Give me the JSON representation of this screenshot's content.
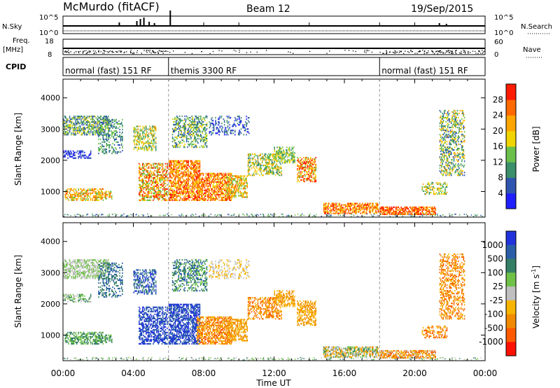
{
  "header": {
    "radar": "McMurdo (fitACF)",
    "beam": "Beam 12",
    "date": "19/Sep/2015"
  },
  "top_panels": {
    "nsky_label": "N.Sky",
    "nsky_ticks": [
      "10^5",
      "10^0"
    ],
    "nsearch_label": "N.Search",
    "nsearch_ticks": [
      "10^5",
      "10^0"
    ],
    "freq_label": "Freq.",
    "freq_unit": "[MHz]",
    "freq_ticks": [
      "18",
      "8"
    ],
    "nave_label": "Nave",
    "nave_ticks": [
      "60",
      "0"
    ],
    "cpid_label": "CPID",
    "modes": [
      {
        "label": "normal (fast) 151 RF",
        "start": 0,
        "end": 6
      },
      {
        "label": "themis 3300 RF",
        "start": 6,
        "end": 18
      },
      {
        "label": "normal (fast) 151 RF",
        "start": 18,
        "end": 24
      }
    ]
  },
  "chart_data": [
    {
      "type": "heatmap",
      "name": "Power",
      "ylabel": "Slant Range [km]",
      "yticks": [
        1000,
        2000,
        3000,
        4000
      ],
      "ylim": [
        180,
        4600
      ],
      "xlim": [
        0,
        24
      ],
      "colorbar_label": "Power [dB]",
      "colorbar_ticks": [
        4,
        8,
        12,
        16,
        20,
        24,
        28
      ],
      "colorbar_colors": [
        "#1f1fff",
        "#2f55b0",
        "#3b8f6a",
        "#6ac04a",
        "#f0d400",
        "#ffa500",
        "#ff6a00",
        "#ff1b00"
      ]
    },
    {
      "type": "heatmap",
      "name": "Velocity",
      "ylabel": "Slant Range [km]",
      "yticks": [
        1000,
        2000,
        3000,
        4000
      ],
      "ylim": [
        180,
        4600
      ],
      "xlim": [
        0,
        24
      ],
      "xlabel": "Time UT",
      "xtick_labels": [
        "00:00",
        "04:00",
        "08:00",
        "12:00",
        "16:00",
        "20:00",
        "00:00"
      ],
      "colorbar_label": "Velocity [m s",
      "colorbar_unit_sup": "-1",
      "colorbar_ticks": [
        "1000",
        "500",
        "100",
        "25",
        "-25",
        "-100",
        "-500",
        "-1000"
      ],
      "colorbar_colors": [
        "#2233dd",
        "#2a5fa8",
        "#357f66",
        "#6fc247",
        "#c0c0c0",
        "#f7b400",
        "#f08a00",
        "#ff5a00",
        "#ff1100"
      ]
    }
  ]
}
